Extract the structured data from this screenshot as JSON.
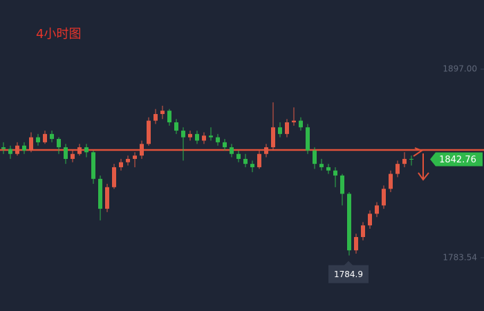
{
  "chart_data": {
    "type": "candlestick",
    "title": "4小时图",
    "up_color": "#e25a45",
    "down_color": "#2fb84a",
    "ylim": [
      1751.5,
      1938.6
    ],
    "yticks": [
      {
        "value": 1897,
        "label": "1897.00"
      },
      {
        "value": 1783.54,
        "label": "1783.54"
      }
    ],
    "last_price": 1842.76,
    "low_marker": 1784.9,
    "candles": [
      [
        1850,
        1853,
        1846,
        1849
      ],
      [
        1849,
        1851,
        1843,
        1846
      ],
      [
        1846,
        1853,
        1845,
        1851
      ],
      [
        1851,
        1853,
        1846,
        1848
      ],
      [
        1848,
        1859,
        1847,
        1856
      ],
      [
        1856,
        1858,
        1851,
        1853
      ],
      [
        1853,
        1860,
        1852,
        1858
      ],
      [
        1858,
        1860,
        1853,
        1855
      ],
      [
        1855,
        1856,
        1846,
        1850
      ],
      [
        1850,
        1852,
        1840,
        1843
      ],
      [
        1843,
        1848,
        1841,
        1846
      ],
      [
        1846,
        1852,
        1845,
        1850
      ],
      [
        1850,
        1852,
        1844,
        1847
      ],
      [
        1847,
        1848,
        1828,
        1831
      ],
      [
        1831,
        1833,
        1806,
        1813
      ],
      [
        1813,
        1828,
        1811,
        1826
      ],
      [
        1826,
        1840,
        1825,
        1838
      ],
      [
        1838,
        1843,
        1836,
        1841
      ],
      [
        1841,
        1845,
        1839,
        1843
      ],
      [
        1843,
        1847,
        1838,
        1845
      ],
      [
        1845,
        1854,
        1843,
        1852
      ],
      [
        1852,
        1868,
        1851,
        1866
      ],
      [
        1866,
        1873,
        1864,
        1870
      ],
      [
        1870,
        1875,
        1867,
        1872
      ],
      [
        1872,
        1873,
        1863,
        1865
      ],
      [
        1865,
        1867,
        1858,
        1860
      ],
      [
        1860,
        1862,
        1842,
        1856
      ],
      [
        1856,
        1860,
        1854,
        1858
      ],
      [
        1858,
        1860,
        1852,
        1854
      ],
      [
        1854,
        1859,
        1852,
        1857
      ],
      [
        1857,
        1862,
        1854,
        1856
      ],
      [
        1856,
        1858,
        1851,
        1853
      ],
      [
        1853,
        1855,
        1848,
        1850
      ],
      [
        1850,
        1852,
        1844,
        1846
      ],
      [
        1846,
        1848,
        1841,
        1843
      ],
      [
        1843,
        1846,
        1838,
        1840
      ],
      [
        1840,
        1842,
        1835,
        1838
      ],
      [
        1838,
        1848,
        1837,
        1846
      ],
      [
        1846,
        1852,
        1844,
        1850
      ],
      [
        1850,
        1877,
        1848,
        1862
      ],
      [
        1862,
        1865,
        1856,
        1858
      ],
      [
        1858,
        1867,
        1856,
        1865
      ],
      [
        1865,
        1874,
        1863,
        1866
      ],
      [
        1866,
        1868,
        1860,
        1862
      ],
      [
        1862,
        1864,
        1846,
        1848
      ],
      [
        1848,
        1850,
        1837,
        1840
      ],
      [
        1840,
        1843,
        1836,
        1838
      ],
      [
        1838,
        1840,
        1834,
        1836
      ],
      [
        1836,
        1838,
        1826,
        1833
      ],
      [
        1833,
        1834,
        1815,
        1822
      ],
      [
        1822,
        1823,
        1784.9,
        1788
      ],
      [
        1788,
        1798,
        1786,
        1796
      ],
      [
        1796,
        1805,
        1794,
        1803
      ],
      [
        1803,
        1812,
        1801,
        1810
      ],
      [
        1810,
        1817,
        1808,
        1815
      ],
      [
        1815,
        1827,
        1813,
        1825
      ],
      [
        1825,
        1836,
        1823,
        1834
      ],
      [
        1834,
        1842,
        1832,
        1840
      ],
      [
        1840,
        1847,
        1838,
        1843
      ],
      [
        1843,
        1845,
        1839,
        1842.76
      ]
    ]
  }
}
